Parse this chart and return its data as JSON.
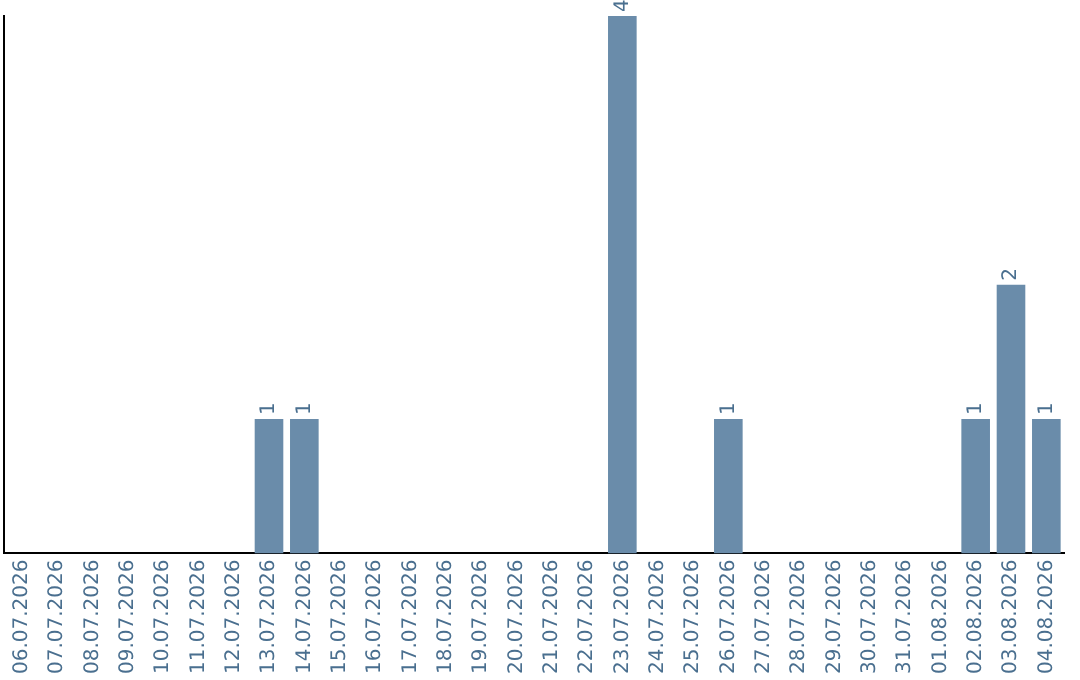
{
  "chart_data": {
    "type": "bar",
    "categories": [
      "06.07.2026",
      "07.07.2026",
      "08.07.2026",
      "09.07.2026",
      "10.07.2026",
      "11.07.2026",
      "12.07.2026",
      "13.07.2026",
      "14.07.2026",
      "15.07.2026",
      "16.07.2026",
      "17.07.2026",
      "18.07.2026",
      "19.07.2026",
      "20.07.2026",
      "21.07.2026",
      "22.07.2026",
      "23.07.2026",
      "24.07.2026",
      "25.07.2026",
      "26.07.2026",
      "27.07.2026",
      "28.07.2026",
      "29.07.2026",
      "30.07.2026",
      "31.07.2026",
      "01.08.2026",
      "02.08.2026",
      "03.08.2026",
      "04.08.2026"
    ],
    "values": [
      0,
      0,
      0,
      0,
      0,
      0,
      0,
      1,
      1,
      0,
      0,
      0,
      0,
      0,
      0,
      0,
      0,
      4,
      0,
      0,
      1,
      0,
      0,
      0,
      0,
      0,
      0,
      1,
      2,
      1
    ],
    "value_labels": [
      null,
      null,
      null,
      null,
      null,
      null,
      null,
      "1",
      "1",
      null,
      null,
      null,
      null,
      null,
      null,
      null,
      null,
      "4",
      null,
      null,
      "1",
      null,
      null,
      null,
      null,
      null,
      null,
      "1",
      "2",
      "1"
    ],
    "color": "#6a8caa",
    "tick_labels": "x",
    "grid": false,
    "legend": false
  }
}
